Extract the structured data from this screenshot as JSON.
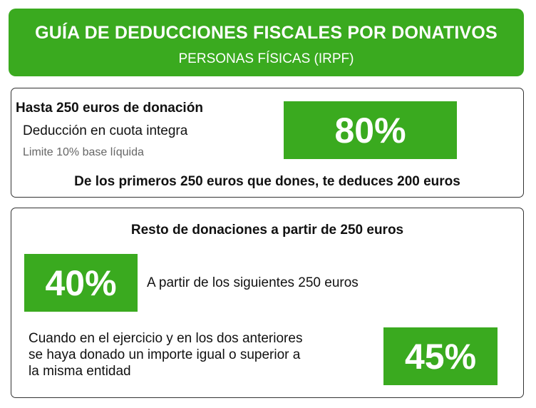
{
  "header": {
    "title": "GUÍA DE DEDUCCIONES FISCALES POR DONATIVOS",
    "subtitle": "PERSONAS FÍSICAS (IRPF)"
  },
  "section1": {
    "title": "Hasta 250 euros de donación",
    "description": "Deducción en cuota integra",
    "limit": "Limite 10% base líquida",
    "percentage": "80%",
    "example": "De los primeros 250 euros que dones, te deduces 200 euros"
  },
  "section2": {
    "title": "Resto de donaciones a partir de 250 euros",
    "percentage_next": "40%",
    "next_text": "A partir de los siguientes 250 euros",
    "condition_text": "Cuando en el ejercicio y en los dos anteriores\nse haya donado un importe igual o superior a\nla misma entidad",
    "percentage_recurrent": "45%"
  },
  "colors": {
    "accent_green": "#3aaa1f",
    "border": "#333333",
    "muted_text": "#666666"
  }
}
